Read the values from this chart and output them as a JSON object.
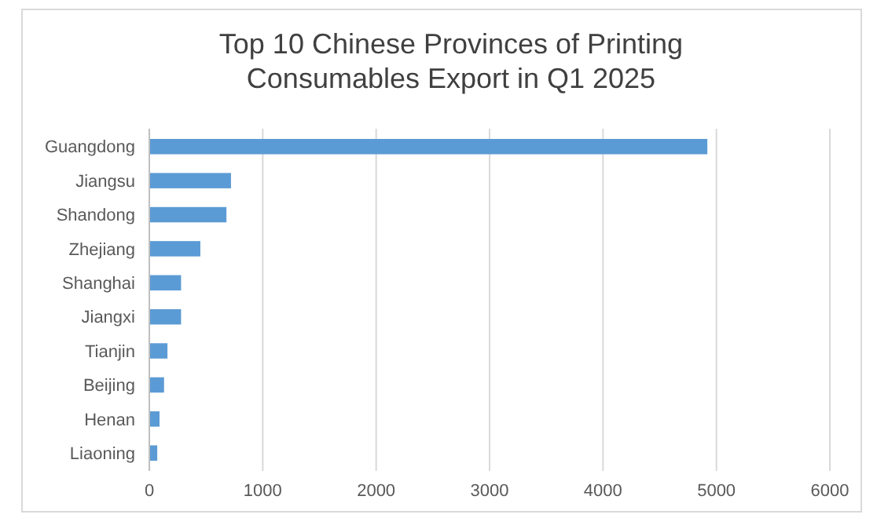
{
  "chart_data": {
    "type": "bar",
    "orientation": "horizontal",
    "title": "Top 10 Chinese Provinces of Printing Consumables Export in Q1 2025",
    "categories": [
      "Guangdong",
      "Jiangsu",
      "Shandong",
      "Zhejiang",
      "Shanghai",
      "Jiangxi",
      "Tianjin",
      "Beijing",
      "Henan",
      "Liaoning"
    ],
    "values": [
      4920,
      720,
      680,
      450,
      280,
      280,
      160,
      130,
      90,
      70
    ],
    "color": "#5b9bd5",
    "xlim": [
      0,
      6000
    ],
    "xticks": [
      0,
      1000,
      2000,
      3000,
      4000,
      5000,
      6000
    ],
    "grid": "x"
  }
}
